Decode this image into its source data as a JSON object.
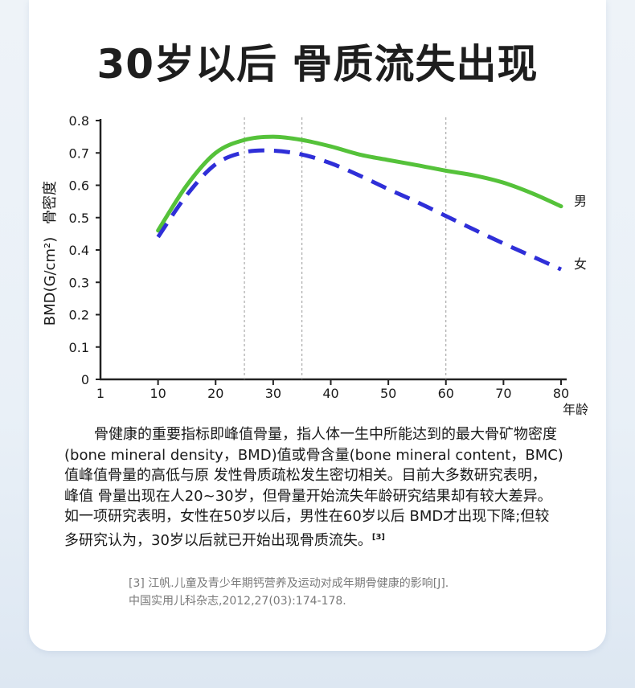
{
  "title": "30岁以后 骨质流失出现",
  "chart_data": {
    "type": "line",
    "ylabel_top": "骨密度",
    "ylabel_bottom": "BMD(G/cm²)",
    "xlabel": "年龄",
    "x_ticks": [
      "1",
      "10",
      "20",
      "30",
      "40",
      "50",
      "60",
      "70",
      "80"
    ],
    "y_ticks": [
      "0",
      "0.1",
      "0.2",
      "0.3",
      "0.4",
      "0.5",
      "0.6",
      "0.7",
      "0.8"
    ],
    "ylim": [
      0,
      0.8
    ],
    "xlim": [
      0,
      80
    ],
    "reference_lines_x": [
      25,
      35,
      60
    ],
    "grid": false,
    "series": [
      {
        "name": "男",
        "color": "#55c23a",
        "style": "solid",
        "x": [
          10,
          15,
          20,
          25,
          30,
          35,
          40,
          45,
          50,
          55,
          60,
          65,
          70,
          75,
          80
        ],
        "y": [
          0.46,
          0.6,
          0.7,
          0.74,
          0.75,
          0.74,
          0.72,
          0.695,
          0.678,
          0.662,
          0.645,
          0.63,
          0.608,
          0.575,
          0.535
        ]
      },
      {
        "name": "女",
        "color": "#2f2fd8",
        "style": "dashed",
        "x": [
          10,
          15,
          20,
          25,
          30,
          35,
          40,
          45,
          50,
          55,
          60,
          65,
          70,
          75,
          80
        ],
        "y": [
          0.44,
          0.57,
          0.665,
          0.702,
          0.707,
          0.695,
          0.668,
          0.63,
          0.588,
          0.548,
          0.505,
          0.462,
          0.42,
          0.38,
          0.34
        ]
      }
    ]
  },
  "paragraph": [
    "骨健康的重要指标即峰值骨量，指人体一生中所能达到的最大骨矿物密度",
    "(bone mineral density，BMD)值或骨含量(bone mineral content，BMC)",
    "值峰值骨量的高低与原 发性骨质疏松发生密切相关。目前大多数研究表明，",
    "峰值 骨量出现在人20~30岁，但骨量开始流失年龄研究结果却有较大差异。",
    "如一项研究表明，女性在50岁以后，男性在60岁以后 BMD才出现下降;但较",
    "多研究认为，30岁以后就已开始出现骨质流失。"
  ],
  "citation_mark": "[3]",
  "reference": [
    "[3] 江帆.儿童及青少年期钙营养及运动对成年期骨健康的影响[J].",
    "中国实用儿科杂志,2012,27(03):174-178."
  ]
}
